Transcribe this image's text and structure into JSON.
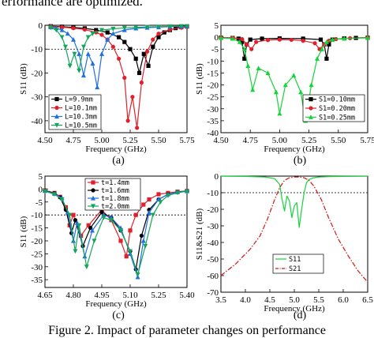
{
  "captions": {
    "top": "erformance are optimized.",
    "bottom": "Figure 2. Impact of parameter changes on performance"
  },
  "chart_data": [
    {
      "type": "line",
      "panel_label": "(a)",
      "xlabel": "Frequency (GHz)",
      "ylabel": "S11 (dB)",
      "xlim": [
        4.5,
        5.75
      ],
      "ylim": [
        -45,
        0
      ],
      "xticks": [
        "4.50",
        "4.75",
        "5.00",
        "5.25",
        "5.50",
        "5.75"
      ],
      "yticks": [
        "0",
        "-10",
        "-20",
        "-30",
        "-40"
      ],
      "reference_line_y": -10,
      "legend_position": "bottom-left",
      "series": [
        {
          "name": "L=9.9mm",
          "color": "#000000",
          "marker": "square",
          "x": [
            4.55,
            4.65,
            4.75,
            4.85,
            4.95,
            5.05,
            5.15,
            5.2,
            5.25,
            5.3,
            5.33,
            5.37,
            5.41,
            5.45,
            5.5,
            5.55,
            5.6,
            5.65,
            5.7,
            5.75
          ],
          "y": [
            -0.4,
            -0.6,
            -0.9,
            -1.3,
            -2,
            -3,
            -5,
            -7,
            -10,
            -14,
            -20,
            -12,
            -17,
            -9,
            -5,
            -3,
            -2,
            -1.2,
            -0.8,
            -0.5
          ]
        },
        {
          "name": "L=10.1mm",
          "color": "#e0202a",
          "marker": "circle",
          "x": [
            4.55,
            4.65,
            4.75,
            4.85,
            4.95,
            5.0,
            5.05,
            5.1,
            5.15,
            5.2,
            5.23,
            5.27,
            5.31,
            5.35,
            5.4,
            5.45,
            5.5,
            5.6,
            5.7,
            5.75
          ],
          "y": [
            -0.5,
            -0.8,
            -1.2,
            -1.8,
            -3,
            -4,
            -6,
            -9,
            -14,
            -22,
            -40,
            -30,
            -43,
            -24,
            -11,
            -6,
            -3.5,
            -1.8,
            -1,
            -0.7
          ]
        },
        {
          "name": "L=10.3mm",
          "color": "#1f6fe5",
          "marker": "triangle",
          "x": [
            4.55,
            4.6,
            4.65,
            4.7,
            4.75,
            4.8,
            4.84,
            4.88,
            4.92,
            4.96,
            5.0,
            5.05,
            5.1,
            5.2,
            5.3,
            5.4,
            5.5,
            5.6,
            5.7,
            5.75
          ],
          "y": [
            -0.8,
            -1.2,
            -2,
            -3.5,
            -6,
            -12,
            -21,
            -12,
            -16,
            -26,
            -12,
            -6,
            -3.5,
            -2,
            -1.3,
            -1,
            -0.8,
            -0.6,
            -0.5,
            -0.4
          ]
        },
        {
          "name": "L=10.5mm",
          "color": "#13a65a",
          "marker": "triangle-down",
          "x": [
            4.55,
            4.6,
            4.65,
            4.68,
            4.72,
            4.76,
            4.8,
            4.84,
            4.88,
            4.92,
            5.0,
            5.1,
            5.2,
            5.3,
            5.4,
            5.5,
            5.6,
            5.7,
            5.75
          ],
          "y": [
            -1,
            -2,
            -5,
            -9,
            -17,
            -12,
            -19,
            -9,
            -5,
            -3.5,
            -2,
            -1.5,
            -1.1,
            -0.9,
            -0.7,
            -0.6,
            -0.5,
            -0.4,
            -0.4
          ]
        }
      ]
    },
    {
      "type": "line",
      "panel_label": "(b)",
      "xlabel": "Frequency (GHz)",
      "ylabel": "S11 (dB)",
      "xlim": [
        4.5,
        5.75
      ],
      "ylim": [
        -40,
        5
      ],
      "xticks": [
        "4.50",
        "4.75",
        "5.00",
        "5.25",
        "5.50",
        "5.75"
      ],
      "yticks": [
        "5",
        "0",
        "-5",
        "-10",
        "-15",
        "-20",
        "-25",
        "-30",
        "-35",
        "-40"
      ],
      "legend_position": "bottom-right",
      "series": [
        {
          "name": "S1=0.10mm",
          "color": "#000000",
          "marker": "square",
          "x": [
            4.5,
            4.6,
            4.65,
            4.68,
            4.7,
            4.72,
            4.75,
            4.85,
            5.0,
            5.2,
            5.35,
            5.38,
            5.4,
            5.42,
            5.45,
            5.55,
            5.65,
            5.75
          ],
          "y": [
            -0.2,
            -0.3,
            -0.6,
            -2,
            -9,
            -3,
            -1,
            -0.6,
            -0.5,
            -0.6,
            -1,
            -3,
            -9,
            -3,
            -1,
            -0.5,
            -0.3,
            -0.2
          ]
        },
        {
          "name": "S1=0.20mm",
          "color": "#e0202a",
          "marker": "circle",
          "x": [
            4.5,
            4.6,
            4.68,
            4.72,
            4.76,
            4.8,
            4.9,
            5.0,
            5.1,
            5.2,
            5.3,
            5.34,
            5.38,
            5.42,
            5.48,
            5.6,
            5.75
          ],
          "y": [
            -0.2,
            -0.3,
            -0.8,
            -3,
            -5,
            -2,
            -1.2,
            -1,
            -1.1,
            -1.5,
            -2.5,
            -5,
            -3,
            -1.5,
            -0.8,
            -0.4,
            -0.2
          ]
        },
        {
          "name": "S1=0.25mm",
          "color": "#13d43a",
          "marker": "triangle",
          "x": [
            4.5,
            4.6,
            4.66,
            4.7,
            4.73,
            4.77,
            4.82,
            4.9,
            4.97,
            5.0,
            5.05,
            5.12,
            5.18,
            5.22,
            5.27,
            5.32,
            5.36,
            5.4,
            5.45,
            5.55,
            5.75
          ],
          "y": [
            -0.3,
            -0.6,
            -2,
            -5,
            -12,
            -22,
            -13,
            -15,
            -23,
            -32,
            -20,
            -16,
            -23,
            -35,
            -20,
            -9,
            -5,
            -2,
            -1,
            -0.5,
            -0.3
          ]
        }
      ]
    },
    {
      "type": "line",
      "panel_label": "(c)",
      "xlabel": "Frequency (GHz)",
      "ylabel": "S11 (dB)",
      "xlim": [
        4.65,
        5.4
      ],
      "ylim": [
        -38,
        5
      ],
      "xticks": [
        "4.65",
        "4.80",
        "4.95",
        "5.10",
        "5.25",
        "5.40"
      ],
      "yticks": [
        "5",
        "0",
        "-5",
        "-10",
        "-15",
        "-20",
        "-25",
        "-30",
        "-35"
      ],
      "reference_line_y": -10,
      "legend_position": "top-center",
      "series": [
        {
          "name": "t=1.4mm",
          "color": "#e0202a",
          "marker": "square",
          "x": [
            4.65,
            4.7,
            4.73,
            4.76,
            4.78,
            4.8,
            4.84,
            4.88,
            4.95,
            5.0,
            5.05,
            5.08,
            5.1,
            5.13,
            5.17,
            5.2,
            5.25,
            5.3,
            5.35,
            5.4
          ],
          "y": [
            -0.5,
            -1.5,
            -3,
            -7,
            -14,
            -10,
            -18,
            -14,
            -8,
            -12,
            -20,
            -26,
            -16,
            -10,
            -6,
            -4,
            -2,
            -1.5,
            -1,
            -0.7
          ]
        },
        {
          "name": "t=1.6mm",
          "color": "#000000",
          "marker": "circle",
          "x": [
            4.65,
            4.7,
            4.73,
            4.76,
            4.79,
            4.81,
            4.85,
            4.89,
            4.95,
            5.0,
            5.05,
            5.1,
            5.13,
            5.16,
            5.2,
            5.25,
            5.3,
            5.35,
            5.4
          ],
          "y": [
            -0.6,
            -1.6,
            -3.2,
            -8,
            -17,
            -12,
            -22,
            -15,
            -9,
            -11,
            -16,
            -24,
            -31,
            -18,
            -8,
            -4,
            -2,
            -1.2,
            -0.8
          ]
        },
        {
          "name": "t=1.8mm",
          "color": "#1f6fe5",
          "marker": "triangle",
          "x": [
            4.65,
            4.7,
            4.74,
            4.77,
            4.8,
            4.82,
            4.86,
            4.9,
            4.96,
            5.0,
            5.05,
            5.1,
            5.14,
            5.17,
            5.2,
            5.25,
            5.3,
            5.35,
            5.4
          ],
          "y": [
            -0.7,
            -1.8,
            -3.5,
            -9,
            -20,
            -13,
            -26,
            -16,
            -10,
            -11,
            -15,
            -25,
            -34,
            -20,
            -9,
            -4,
            -2,
            -1.2,
            -0.8
          ]
        },
        {
          "name": "t=2.0mm",
          "color": "#13a65a",
          "marker": "triangle-down",
          "x": [
            4.65,
            4.7,
            4.74,
            4.78,
            4.81,
            4.83,
            4.87,
            4.91,
            4.96,
            5.0,
            5.05,
            5.1,
            5.14,
            5.18,
            5.22,
            5.26,
            5.3,
            5.35,
            5.4
          ],
          "y": [
            -0.8,
            -2,
            -4,
            -10,
            -24,
            -14,
            -30,
            -20,
            -11,
            -12,
            -16,
            -24,
            -33,
            -22,
            -10,
            -5,
            -2.5,
            -1.4,
            -0.9
          ]
        }
      ]
    },
    {
      "type": "line",
      "panel_label": "(d)",
      "xlabel": "Frequency (GHz)",
      "ylabel": "S11&S21 (dB)",
      "xlim": [
        3.5,
        6.5
      ],
      "ylim": [
        -70,
        0
      ],
      "xticks": [
        "3.5",
        "4.0",
        "4.5",
        "5.0",
        "5.5",
        "6.0",
        "6.5"
      ],
      "yticks": [
        "0",
        "-10",
        "-20",
        "-30",
        "-40",
        "-50",
        "-60",
        "-70"
      ],
      "reference_line_y": -10,
      "legend_position": "center",
      "series": [
        {
          "name": "S11",
          "color": "#13d43a",
          "style": "solid",
          "x": [
            3.5,
            4.0,
            4.4,
            4.6,
            4.7,
            4.75,
            4.8,
            4.85,
            4.9,
            4.95,
            5.0,
            5.05,
            5.1,
            5.15,
            5.2,
            5.25,
            5.3,
            5.4,
            5.5,
            5.7,
            6.0,
            6.5
          ],
          "y": [
            -0.1,
            -0.2,
            -0.5,
            -1.5,
            -5,
            -14,
            -21,
            -12,
            -15,
            -25,
            -18,
            -16,
            -31,
            -20,
            -10,
            -4,
            -2,
            -1,
            -0.5,
            -0.3,
            -0.2,
            -0.1
          ]
        },
        {
          "name": "S21",
          "color": "#d01818",
          "style": "dashdot",
          "x": [
            3.5,
            3.8,
            4.1,
            4.3,
            4.45,
            4.6,
            4.7,
            4.8,
            4.9,
            5.0,
            5.1,
            5.2,
            5.3,
            5.4,
            5.55,
            5.7,
            5.9,
            6.1,
            6.3,
            6.5
          ],
          "y": [
            -60,
            -53,
            -44,
            -36,
            -26,
            -14,
            -7,
            -2.5,
            -1,
            -0.5,
            -0.5,
            -1,
            -2.5,
            -6,
            -14,
            -25,
            -38,
            -48,
            -57,
            -64
          ]
        }
      ]
    }
  ]
}
